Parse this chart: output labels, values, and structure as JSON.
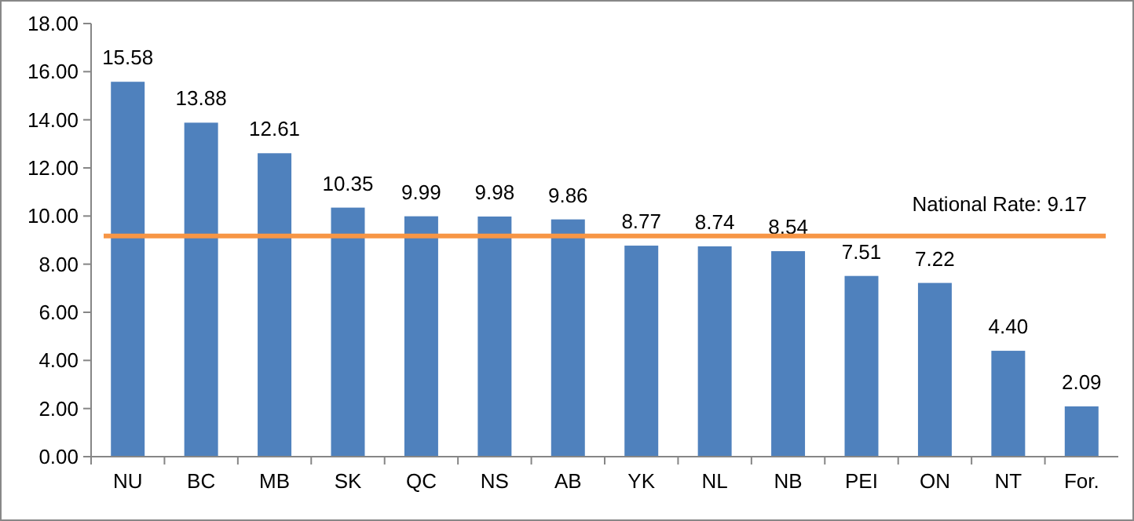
{
  "chart_data": {
    "type": "bar",
    "categories": [
      "NU",
      "BC",
      "MB",
      "SK",
      "QC",
      "NS",
      "AB",
      "YK",
      "NL",
      "NB",
      "PEI",
      "ON",
      "NT",
      "For."
    ],
    "values": [
      15.58,
      13.88,
      12.61,
      10.35,
      9.99,
      9.98,
      9.86,
      8.77,
      8.74,
      8.54,
      7.51,
      7.22,
      4.4,
      2.09
    ],
    "value_labels": [
      "15.58",
      "13.88",
      "12.61",
      "10.35",
      "9.99",
      "9.98",
      "9.86",
      "8.77",
      "8.74",
      "8.54",
      "7.51",
      "7.22",
      "4.40",
      "2.09"
    ],
    "color": "#4f81bd",
    "ylim": [
      0,
      18
    ],
    "yticks": [
      {
        "value": 0,
        "label": "0.00"
      },
      {
        "value": 2,
        "label": "2.00"
      },
      {
        "value": 4,
        "label": "4.00"
      },
      {
        "value": 6,
        "label": "6.00"
      },
      {
        "value": 8,
        "label": "8.00"
      },
      {
        "value": 10,
        "label": "10.00"
      },
      {
        "value": 12,
        "label": "12.00"
      },
      {
        "value": 14,
        "label": "14.00"
      },
      {
        "value": 16,
        "label": "16.00"
      },
      {
        "value": 18,
        "label": "18.00"
      }
    ],
    "ref_lines": [
      {
        "axis": "y",
        "value": 9.17,
        "label": "National Rate: 9.17",
        "color": "#f79646"
      }
    ],
    "grid": false
  }
}
